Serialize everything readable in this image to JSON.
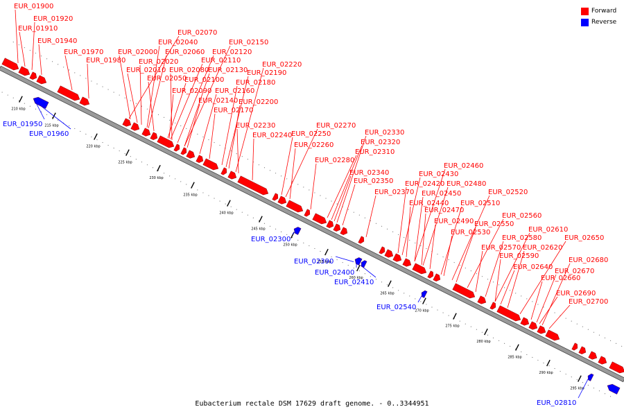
{
  "caption": "Eubacterium rectale DSM 17629 draft genome. - 0..3344951",
  "legend": {
    "forward_label": "Forward",
    "reverse_label": "Reverse",
    "forward_color": "#ff0000",
    "reverse_color": "#0000ff"
  },
  "scale_labels": [
    "210 kbp",
    "215 kbp",
    "220 kbp",
    "225 kbp",
    "230 kbp",
    "235 kbp",
    "240 kbp",
    "245 kbp",
    "250 kbp",
    "255 kbp",
    "260 kbp",
    "265 kbp",
    "270 kbp",
    "275 kbp",
    "280 kbp",
    "285 kbp",
    "290 kbp",
    "295 kbp"
  ],
  "forward_genes": [
    "EUR_01900",
    "EUR_01920",
    "EUR_01910",
    "EUR_01940",
    "EUR_01970",
    "EUR_01980",
    "EUR_02070",
    "EUR_02040",
    "EUR_02000",
    "EUR_02060",
    "EUR_02020",
    "EUR_02010",
    "EUR_02080",
    "EUR_02050",
    "EUR_02150",
    "EUR_02120",
    "EUR_02110",
    "EUR_02130",
    "EUR_02100",
    "EUR_02090",
    "EUR_02160",
    "EUR_02140",
    "EUR_02170",
    "EUR_02220",
    "EUR_02190",
    "EUR_02180",
    "EUR_02200",
    "EUR_02230",
    "EUR_02240",
    "EUR_02270",
    "EUR_02250",
    "EUR_02260",
    "EUR_02330",
    "EUR_02320",
    "EUR_02310",
    "EUR_02280",
    "EUR_02340",
    "EUR_02350",
    "EUR_02370",
    "EUR_02460",
    "EUR_02430",
    "EUR_02420",
    "EUR_02480",
    "EUR_02450",
    "EUR_02440",
    "EUR_02520",
    "EUR_02510",
    "EUR_02470",
    "EUR_02560",
    "EUR_02490",
    "EUR_02550",
    "EUR_02530",
    "EUR_02610",
    "EUR_02580",
    "EUR_02650",
    "EUR_02570",
    "EUR_02620",
    "EUR_02590",
    "EUR_02640",
    "EUR_02680",
    "EUR_02670",
    "EUR_02660",
    "EUR_02690",
    "EUR_02700"
  ],
  "reverse_genes": [
    "EUR_01950",
    "EUR_01960",
    "EUR_02300",
    "EUR_02390",
    "EUR_02400",
    "EUR_02410",
    "EUR_02540",
    "EUR_02810"
  ]
}
